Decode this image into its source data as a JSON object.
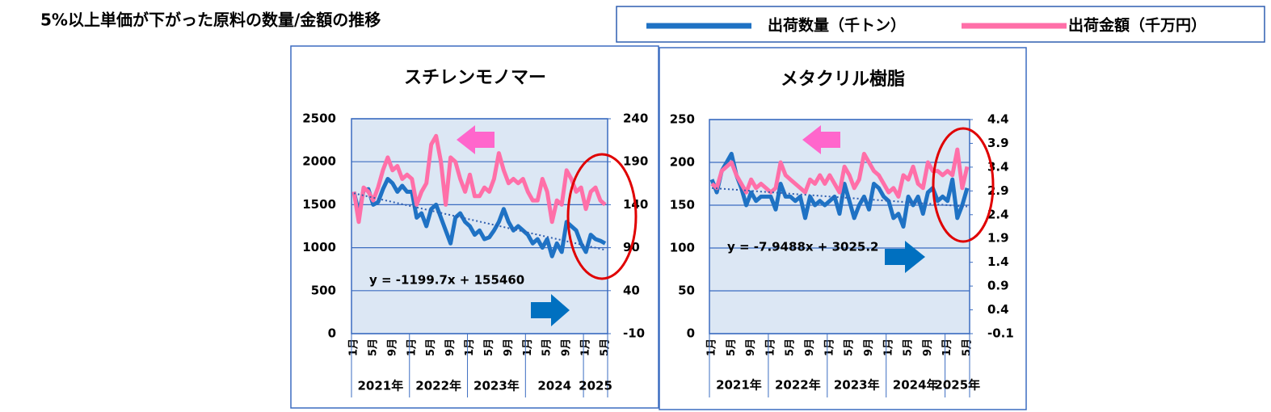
{
  "title": "5%以上単価が下がった原料の数量/金額の推移",
  "chart_data": [
    {
      "type": "line",
      "title": "スチレンモノマー",
      "annotation": "y = -1199.7x + 155460",
      "categories": [
        "1月",
        null,
        null,
        null,
        "5月",
        null,
        null,
        null,
        "9月",
        null,
        null,
        null,
        "1月",
        null,
        null,
        null,
        "5月",
        null,
        null,
        null,
        "9月",
        null,
        null,
        null,
        "1月",
        null,
        null,
        null,
        "5月",
        null,
        null,
        null,
        "9月",
        null,
        null,
        null,
        "1月",
        null,
        null,
        null,
        "5月",
        null,
        null,
        null,
        "9月",
        null,
        null,
        null,
        "1月",
        null,
        null,
        null,
        "5月"
      ],
      "groups": [
        "2021年",
        "2022年",
        "2023年",
        "2024",
        "2025"
      ],
      "ylim": [
        0,
        2500
      ],
      "yticks": [
        0,
        500,
        1000,
        1500,
        2000,
        2500
      ],
      "y2lim": [
        -10,
        240
      ],
      "y2ticks": [
        -10,
        40,
        90,
        140,
        190,
        240
      ],
      "grid": true,
      "series": [
        {
          "name": "出荷数量（千トン）",
          "color": "#1f72c4",
          "axis": "y2",
          "values": [
            155,
            130,
            157,
            158,
            140,
            143,
            158,
            170,
            165,
            155,
            162,
            155,
            155,
            125,
            130,
            115,
            135,
            140,
            125,
            110,
            95,
            125,
            130,
            120,
            115,
            105,
            110,
            100,
            102,
            110,
            120,
            135,
            120,
            110,
            115,
            110,
            105,
            95,
            100,
            90,
            100,
            80,
            95,
            85,
            120,
            115,
            110,
            95,
            85,
            105,
            100,
            98,
            95
          ]
        },
        {
          "name": "出荷金額（千万円）",
          "color": "#ff6fa8",
          "values": [
            1650,
            1300,
            1700,
            1650,
            1550,
            1700,
            1900,
            2050,
            1900,
            1950,
            1800,
            1850,
            1800,
            1500,
            1650,
            1750,
            2200,
            2300,
            2000,
            1500,
            2050,
            2000,
            1800,
            1650,
            1850,
            1600,
            1600,
            1700,
            1650,
            1800,
            2100,
            1900,
            1750,
            1800,
            1750,
            1800,
            1650,
            1550,
            1550,
            1800,
            1650,
            1300,
            1550,
            1500,
            1900,
            1800,
            1650,
            1700,
            1450,
            1650,
            1700,
            1550,
            1500
          ]
        }
      ]
    },
    {
      "type": "line",
      "title": "メタクリル樹脂",
      "annotation": "y = -7.9488x + 3025.2",
      "categories": [
        "1月",
        null,
        null,
        null,
        "5月",
        null,
        null,
        null,
        "9月",
        null,
        null,
        null,
        "1月",
        null,
        null,
        null,
        "5月",
        null,
        null,
        null,
        "9月",
        null,
        null,
        null,
        "1月",
        null,
        null,
        null,
        "5月",
        null,
        null,
        null,
        "9月",
        null,
        null,
        null,
        "1月",
        null,
        null,
        null,
        "5月",
        null,
        null,
        null,
        "9月",
        null,
        null,
        null,
        "1月",
        null,
        null,
        null,
        "5月"
      ],
      "groups": [
        "2021年",
        "2022年",
        "2023年",
        "2024年",
        "2025年"
      ],
      "ylim": [
        0,
        250
      ],
      "yticks": [
        0,
        50,
        100,
        150,
        200,
        250
      ],
      "y2lim": [
        -0.1,
        4.4
      ],
      "y2ticks": [
        -0.1,
        0.4,
        0.9,
        1.4,
        1.9,
        2.4,
        2.9,
        3.4,
        3.9,
        4.4
      ],
      "grid": true,
      "series": [
        {
          "color": "#1f72c4",
          "axis": "y2",
          "values": [
            3.14,
            2.87,
            3.32,
            3.5,
            3.68,
            3.23,
            2.96,
            2.6,
            2.87,
            2.69,
            2.78,
            2.78,
            2.78,
            2.51,
            3.05,
            2.78,
            2.78,
            2.69,
            2.78,
            2.33,
            2.78,
            2.6,
            2.69,
            2.6,
            2.69,
            2.78,
            2.42,
            3.05,
            2.69,
            2.33,
            2.6,
            2.78,
            2.51,
            3.05,
            2.96,
            2.78,
            2.69,
            2.33,
            2.42,
            2.15,
            2.78,
            2.6,
            2.78,
            2.42,
            2.87,
            2.96,
            2.69,
            2.78,
            2.69,
            3.14,
            2.33,
            2.6,
            2.96
          ]
        },
        {
          "color": "#ff6fa8",
          "values": [
            175,
            170,
            190,
            195,
            200,
            185,
            175,
            165,
            180,
            170,
            175,
            170,
            165,
            170,
            200,
            185,
            180,
            175,
            170,
            165,
            180,
            175,
            185,
            175,
            185,
            175,
            165,
            195,
            185,
            170,
            180,
            210,
            200,
            190,
            185,
            175,
            165,
            170,
            160,
            185,
            180,
            195,
            175,
            170,
            200,
            190,
            190,
            185,
            190,
            185,
            215,
            170,
            195
          ]
        }
      ]
    }
  ]
}
